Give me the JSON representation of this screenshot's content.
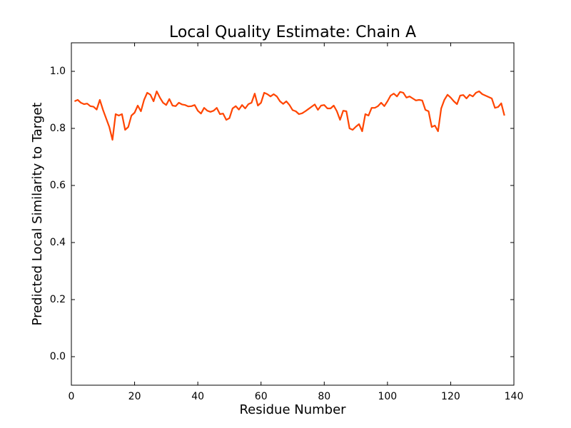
{
  "chart_data": {
    "type": "line",
    "title": "Local Quality Estimate: Chain A",
    "x_label": "Residue Number",
    "y_label": "Predicted Local Similarity to Target",
    "xlim": [
      0,
      140
    ],
    "xticks": [
      0,
      20,
      40,
      60,
      80,
      100,
      120,
      140
    ],
    "ylim": [
      -0.1,
      1.1
    ],
    "yticks": [
      {
        "value": 0,
        "label": "0.0"
      },
      0.2,
      0.4,
      0.6,
      0.8,
      {
        "value": 1,
        "label": "1.0"
      }
    ],
    "x": [
      1,
      2,
      3,
      4,
      5,
      6,
      7,
      8,
      9,
      10,
      11,
      12,
      13,
      14,
      15,
      16,
      17,
      18,
      19,
      20,
      21,
      22,
      23,
      24,
      25,
      26,
      27,
      28,
      29,
      30,
      31,
      32,
      33,
      34,
      35,
      36,
      37,
      38,
      39,
      40,
      41,
      42,
      43,
      44,
      45,
      46,
      47,
      48,
      49,
      50,
      51,
      52,
      53,
      54,
      55,
      56,
      57,
      58,
      59,
      60,
      61,
      62,
      63,
      64,
      65,
      66,
      67,
      68,
      69,
      70,
      71,
      72,
      73,
      74,
      75,
      76,
      77,
      78,
      79,
      80,
      81,
      82,
      83,
      84,
      85,
      86,
      87,
      88,
      89,
      90,
      91,
      92,
      93,
      94,
      95,
      96,
      97,
      98,
      99,
      100,
      101,
      102,
      103,
      104,
      105,
      106,
      107,
      108,
      109,
      110,
      111,
      112,
      113,
      114,
      115,
      116,
      117,
      118,
      119,
      120,
      121,
      122,
      123,
      124,
      125,
      126,
      127,
      128,
      129,
      130,
      131,
      132,
      133,
      134,
      135,
      136,
      137
    ],
    "series": [
      {
        "name": "Chain A",
        "color": "#ff4500",
        "values": [
          0.895,
          0.9,
          0.89,
          0.885,
          0.887,
          0.878,
          0.876,
          0.866,
          0.9,
          0.865,
          0.835,
          0.805,
          0.76,
          0.85,
          0.845,
          0.85,
          0.795,
          0.805,
          0.845,
          0.855,
          0.88,
          0.86,
          0.9,
          0.925,
          0.918,
          0.895,
          0.93,
          0.908,
          0.89,
          0.882,
          0.903,
          0.88,
          0.878,
          0.89,
          0.884,
          0.882,
          0.877,
          0.878,
          0.882,
          0.862,
          0.852,
          0.872,
          0.862,
          0.858,
          0.862,
          0.872,
          0.85,
          0.852,
          0.83,
          0.836,
          0.87,
          0.878,
          0.866,
          0.882,
          0.87,
          0.885,
          0.89,
          0.922,
          0.88,
          0.89,
          0.925,
          0.92,
          0.912,
          0.92,
          0.912,
          0.895,
          0.886,
          0.895,
          0.882,
          0.864,
          0.86,
          0.85,
          0.853,
          0.86,
          0.868,
          0.876,
          0.884,
          0.865,
          0.88,
          0.882,
          0.87,
          0.87,
          0.88,
          0.86,
          0.83,
          0.862,
          0.86,
          0.8,
          0.795,
          0.806,
          0.815,
          0.79,
          0.85,
          0.845,
          0.872,
          0.872,
          0.878,
          0.89,
          0.878,
          0.895,
          0.915,
          0.922,
          0.912,
          0.928,
          0.925,
          0.908,
          0.912,
          0.905,
          0.898,
          0.9,
          0.898,
          0.865,
          0.86,
          0.805,
          0.81,
          0.79,
          0.87,
          0.9,
          0.918,
          0.908,
          0.895,
          0.885,
          0.915,
          0.917,
          0.905,
          0.918,
          0.912,
          0.925,
          0.93,
          0.92,
          0.915,
          0.91,
          0.905,
          0.872,
          0.875,
          0.888,
          0.845
        ]
      }
    ]
  }
}
